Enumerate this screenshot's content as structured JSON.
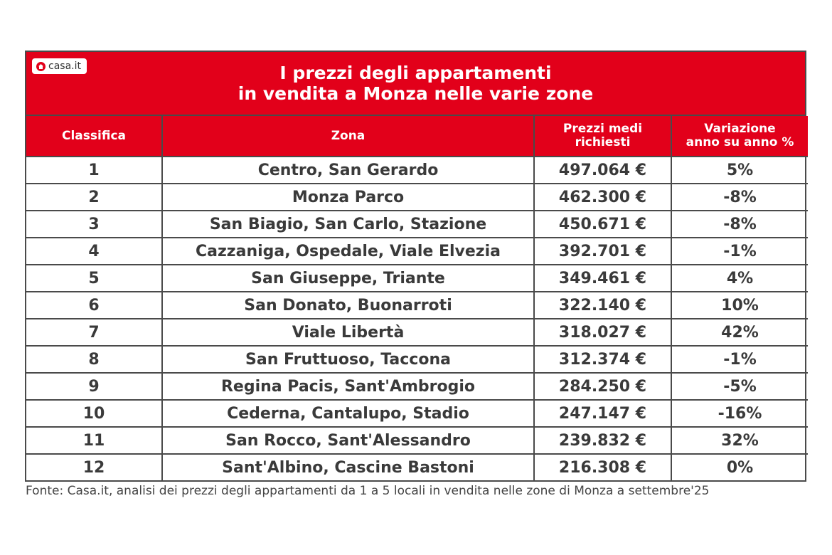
{
  "logo": {
    "text": "casa.it"
  },
  "title": {
    "line1": "I prezzi degli appartamenti",
    "line2": "in vendita a Monza nelle varie zone"
  },
  "headers": {
    "rank": "Classifica",
    "zone": "Zona",
    "price_line1": "Prezzi medi",
    "price_line2": "richiesti",
    "change_line1": "Variazione",
    "change_line2": "anno su anno %"
  },
  "rows": [
    {
      "rank": "1",
      "zone": "Centro, San Gerardo",
      "price": "497.064 €",
      "change": "5%"
    },
    {
      "rank": "2",
      "zone": "Monza Parco",
      "price": "462.300 €",
      "change": "-8%"
    },
    {
      "rank": "3",
      "zone": "San Biagio, San Carlo, Stazione",
      "price": "450.671 €",
      "change": "-8%"
    },
    {
      "rank": "4",
      "zone": "Cazzaniga, Ospedale, Viale Elvezia",
      "price": "392.701 €",
      "change": "-1%"
    },
    {
      "rank": "5",
      "zone": "San Giuseppe, Triante",
      "price": "349.461 €",
      "change": "4%"
    },
    {
      "rank": "6",
      "zone": "San Donato, Buonarroti",
      "price": "322.140 €",
      "change": "10%"
    },
    {
      "rank": "7",
      "zone": "Viale Libertà",
      "price": "318.027 €",
      "change": "42%"
    },
    {
      "rank": "8",
      "zone": "San Fruttuoso, Taccona",
      "price": "312.374 €",
      "change": "-1%"
    },
    {
      "rank": "9",
      "zone": "Regina Pacis, Sant'Ambrogio",
      "price": "284.250 €",
      "change": "-5%"
    },
    {
      "rank": "10",
      "zone": "Cederna, Cantalupo, Stadio",
      "price": "247.147 €",
      "change": "-16%"
    },
    {
      "rank": "11",
      "zone": "San Rocco, Sant'Alessandro",
      "price": "239.832 €",
      "change": "32%"
    },
    {
      "rank": "12",
      "zone": "Sant'Albino, Cascine Bastoni",
      "price": "216.308 €",
      "change": "0%"
    }
  ],
  "source": "Fonte: Casa.it, analisi dei prezzi degli appartamenti da 1 a 5 locali in vendita nelle zone di Monza a settembre'25",
  "colors": {
    "accent": "#e2001a",
    "border": "#4a4a4a",
    "text": "#3a3a3a"
  }
}
